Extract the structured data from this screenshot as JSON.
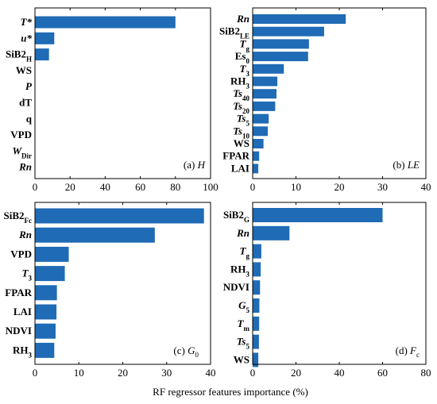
{
  "colors": {
    "bar": "#1f6bb5",
    "axis": "#000000",
    "background": "#ffffff"
  },
  "shared_xlabel": "RF regressor features importance (%)",
  "chart_data": [
    {
      "type": "bar",
      "orientation": "horizontal",
      "annotation": "(a) H",
      "categories": [
        "T*",
        "u*",
        "SiB2H",
        "WS",
        "P",
        "dT",
        "q",
        "VPD",
        "WDir",
        "Rn"
      ],
      "values": [
        80,
        11,
        8,
        0,
        0,
        0,
        0,
        0,
        0,
        0
      ],
      "xlim": [
        0,
        100
      ],
      "xticks": [
        0,
        20,
        40,
        60,
        80,
        100
      ],
      "grid": false
    },
    {
      "type": "bar",
      "orientation": "horizontal",
      "annotation": "(b) LE",
      "categories": [
        "Rn",
        "SiB2LE",
        "Tg",
        "Es0",
        "T3",
        "RH3",
        "Ts40",
        "Ts20",
        "Ts5",
        "Ts10",
        "WS",
        "FPAR",
        "LAI"
      ],
      "values": [
        21.5,
        16.5,
        13,
        12.8,
        7.2,
        5.7,
        5.5,
        5.2,
        3.7,
        3.5,
        2.5,
        1.5,
        1.3
      ],
      "xlim": [
        0,
        40
      ],
      "xticks": [
        0,
        10,
        20,
        30,
        40
      ],
      "grid": false
    },
    {
      "type": "bar",
      "orientation": "horizontal",
      "annotation": "(c) G0",
      "categories": [
        "SiB2Fc",
        "Rn",
        "VPD",
        "T3",
        "FPAR",
        "LAI",
        "NDVI",
        "RH3"
      ],
      "values": [
        38.5,
        27.3,
        7.7,
        6.8,
        5.0,
        4.9,
        4.7,
        4.4
      ],
      "xlim": [
        0,
        40
      ],
      "xticks": [
        0,
        10,
        20,
        30,
        40
      ],
      "grid": false
    },
    {
      "type": "bar",
      "orientation": "horizontal",
      "annotation": "(d) Fc",
      "categories": [
        "SiB2G",
        "Rn",
        "Tg",
        "RH3",
        "NDVI",
        "G5",
        "Tm",
        "Ts5",
        "WS"
      ],
      "values": [
        60,
        17,
        4,
        3.7,
        3.4,
        3.1,
        3.0,
        2.9,
        2.6
      ],
      "xlim": [
        0,
        80
      ],
      "xticks": [
        0,
        20,
        40,
        60,
        80
      ],
      "grid": false
    }
  ]
}
